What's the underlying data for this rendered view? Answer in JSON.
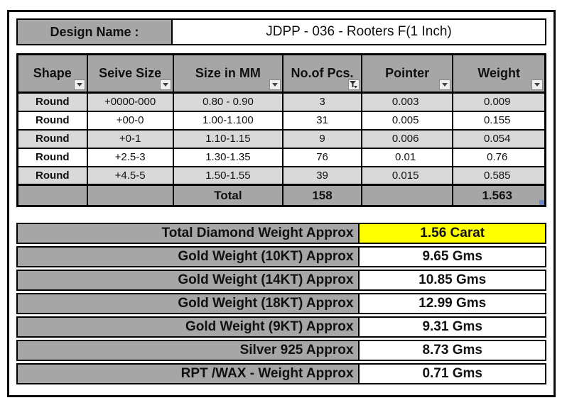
{
  "design": {
    "label": "Design Name :",
    "value": "JDPP - 036 - Rooters F(1 Inch)"
  },
  "table": {
    "columns": [
      {
        "key": "shape",
        "label": "Shape",
        "filtered": false
      },
      {
        "key": "seive",
        "label": "Seive Size",
        "filtered": false
      },
      {
        "key": "mm",
        "label": "Size in MM",
        "filtered": false
      },
      {
        "key": "pcs",
        "label": "No.of Pcs.",
        "filtered": true
      },
      {
        "key": "pointer",
        "label": "Pointer",
        "filtered": false
      },
      {
        "key": "weight",
        "label": "Weight",
        "filtered": false
      }
    ],
    "rows": [
      {
        "shape": "Round",
        "seive": "+0000-000",
        "mm": "0.80 - 0.90",
        "pcs": "3",
        "pointer": "0.003",
        "weight": "0.009"
      },
      {
        "shape": "Round",
        "seive": "+00-0",
        "mm": "1.00-1.100",
        "pcs": "31",
        "pointer": "0.005",
        "weight": "0.155"
      },
      {
        "shape": "Round",
        "seive": "+0-1",
        "mm": "1.10-1.15",
        "pcs": "9",
        "pointer": "0.006",
        "weight": "0.054"
      },
      {
        "shape": "Round",
        "seive": "+2.5-3",
        "mm": "1.30-1.35",
        "pcs": "76",
        "pointer": "0.01",
        "weight": "0.76"
      },
      {
        "shape": "Round",
        "seive": "+4.5-5",
        "mm": "1.50-1.55",
        "pcs": "39",
        "pointer": "0.015",
        "weight": "0.585"
      }
    ],
    "total": {
      "label": "Total",
      "pcs": "158",
      "weight": "1.563"
    }
  },
  "summary": {
    "rows": [
      {
        "label": "Total Diamond Weight Approx",
        "value": "1.56 Carat",
        "highlight": true
      },
      {
        "label": "Gold Weight (10KT) Approx",
        "value": "9.65 Gms",
        "highlight": false
      },
      {
        "label": "Gold Weight (14KT) Approx",
        "value": "10.85 Gms",
        "highlight": false
      },
      {
        "label": "Gold Weight (18KT) Approx",
        "value": "12.99 Gms",
        "highlight": false
      },
      {
        "label": "Gold Weight (9KT) Approx",
        "value": "9.31 Gms",
        "highlight": false
      },
      {
        "label": "Silver 925 Approx",
        "value": "8.73 Gms",
        "highlight": false
      },
      {
        "label": "RPT /WAX - Weight Approx",
        "value": "0.71 Gms",
        "highlight": false
      }
    ]
  },
  "icons": {
    "filter_dropdown": "filter-dropdown-icon",
    "filter_active": "filter-active-funnel-icon",
    "comment_marker": "comment-marker"
  },
  "colors": {
    "header_gray": "#a6a6a6",
    "row_shade_gray": "#d9d9d9",
    "row_white": "#ffffff",
    "highlight_yellow": "#ffff00",
    "border_black": "#000000",
    "comment_marker_blue": "#6b85c9"
  }
}
